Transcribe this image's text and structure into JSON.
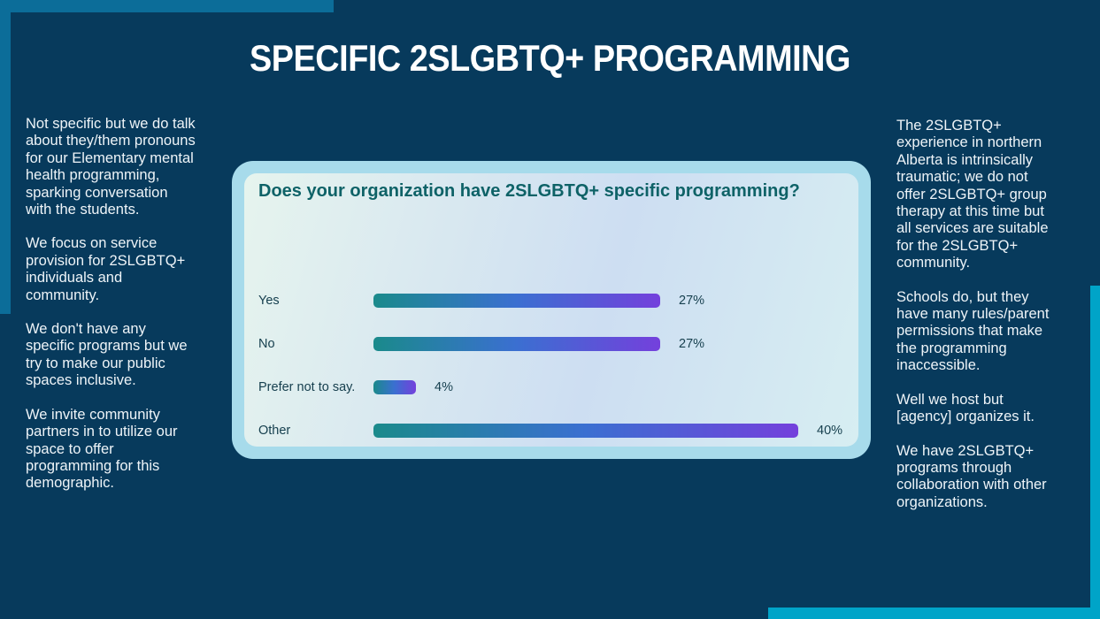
{
  "slide": {
    "title": "SPECIFIC 2SLGBTQ+ PROGRAMMING"
  },
  "left_column": {
    "paragraphs": [
      "Not specific but we do talk\nabout they/them pronouns\nfor our Elementary mental\nhealth programming,\nsparking conversation\nwith the students.",
      "We focus on service\nprovision for 2SLGBTQ+\nindividuals and\ncommunity.",
      "We don't have any\nspecific programs but we\ntry to make our public\nspaces inclusive.",
      "We invite community\npartners in to utilize our\nspace to offer\nprogramming for this\ndemographic."
    ]
  },
  "right_column": {
    "paragraphs": [
      "The 2SLGBTQ+\nexperience in northern\nAlberta is intrinsically\ntraumatic; we do not\noffer 2SLGBTQ+ group\ntherapy at this time but\nall services are suitable\nfor the 2SLGBTQ+\ncommunity.",
      "Schools do, but they\nhave many rules/parent\npermissions that make\nthe programming\ninaccessible.",
      "Well we host but\n[agency] organizes it.",
      "We have 2SLGBTQ+\nprograms through\ncollaboration with other\norganizations."
    ]
  },
  "chart_data": {
    "type": "bar",
    "orientation": "horizontal",
    "title": "Does your organization have 2SLGBTQ+ specific programming?",
    "categories": [
      "Yes",
      "No",
      "Prefer not to say.",
      "Other"
    ],
    "values": [
      27,
      27,
      4,
      40
    ],
    "value_labels": [
      "27%",
      "27%",
      "4%",
      "40%"
    ],
    "xlim": [
      0,
      40
    ],
    "grid": "off",
    "legend": "none"
  },
  "colors": {
    "background": "#073a5c",
    "accent_teal": "#0c6d99",
    "accent_cyan": "#00a4c8",
    "title_text": "#ffffff",
    "body_text": "#eef4f8",
    "card_frame": "#a7dbeb",
    "chart_title": "#0e6267",
    "chart_label": "#17404f",
    "bar_gradient_start": "#1a8a8b",
    "bar_gradient_mid": "#3b6fd1",
    "bar_gradient_end": "#7440dc"
  }
}
